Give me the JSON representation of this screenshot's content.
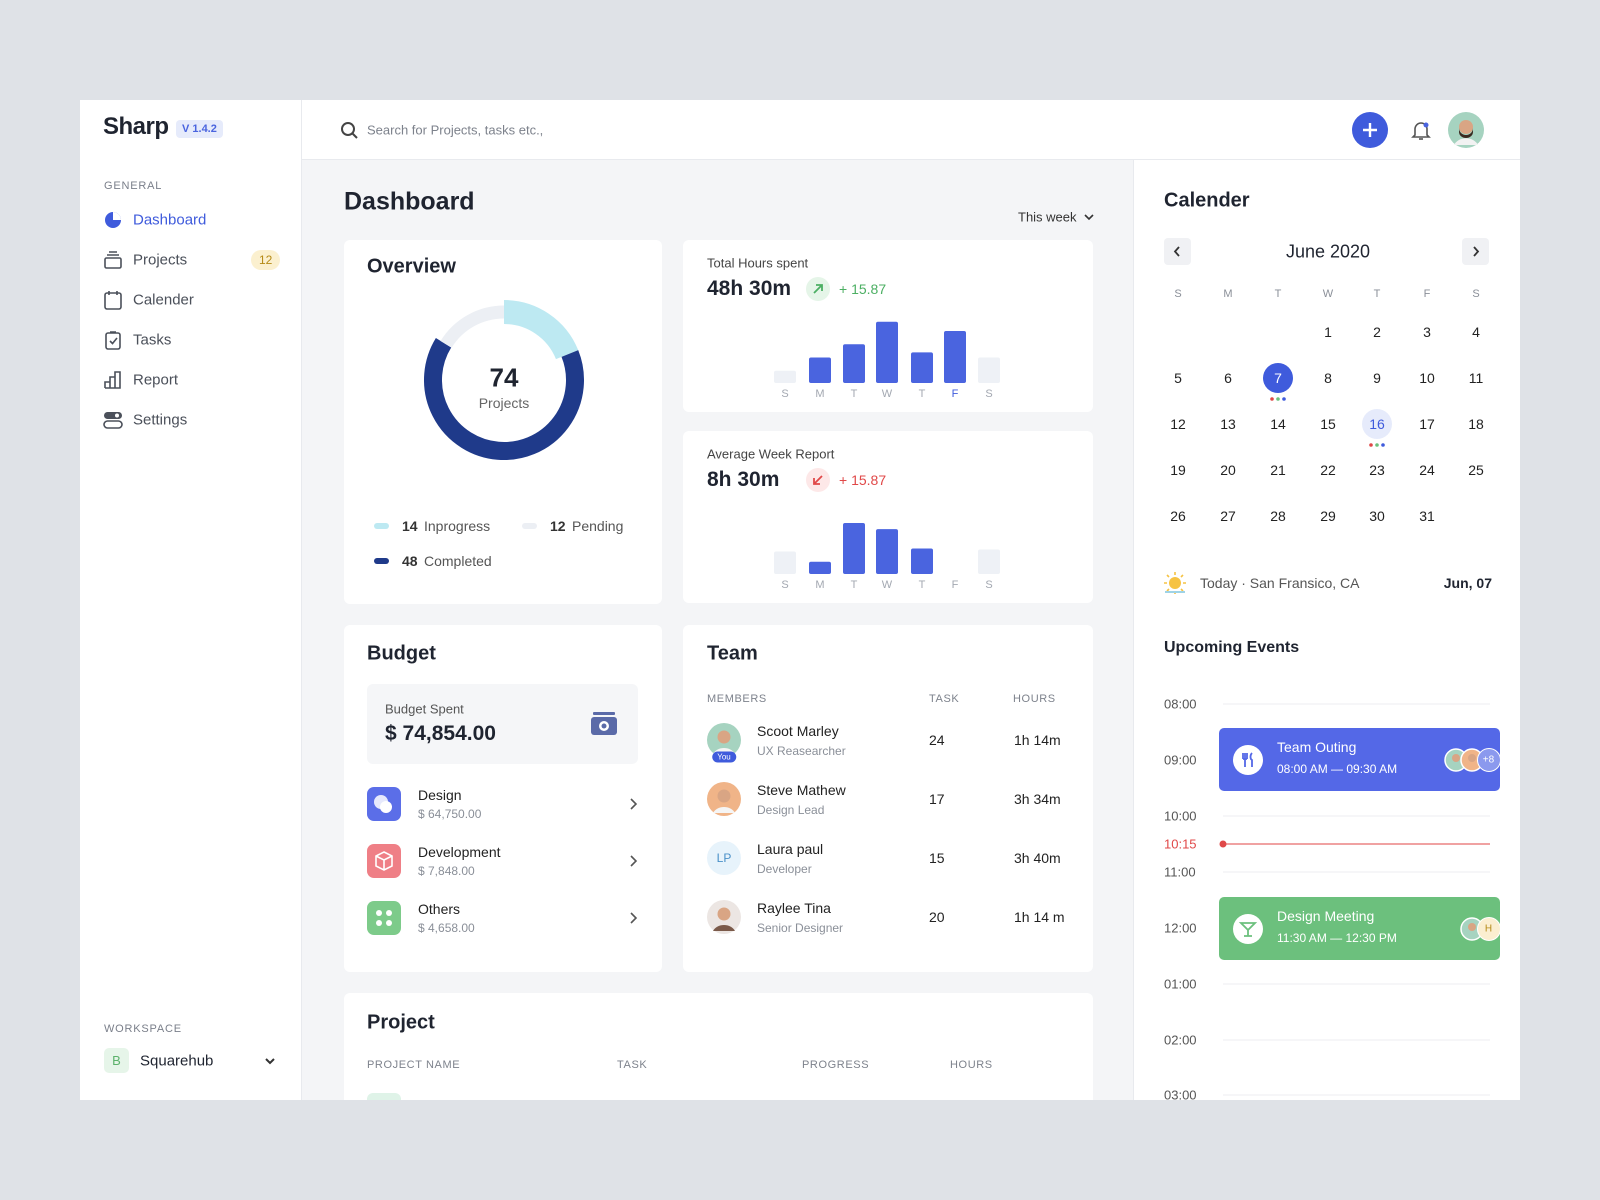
{
  "sidebar": {
    "logo": "Sharp",
    "version": "V 1.4.2",
    "section": "GENERAL",
    "active_index": 0,
    "nav": [
      {
        "label": "Dashboard"
      },
      {
        "label": "Projects",
        "badge": 12
      },
      {
        "label": "Calender"
      },
      {
        "label": "Tasks"
      },
      {
        "label": "Report"
      },
      {
        "label": "Settings"
      }
    ],
    "workspace_label": "WORKSPACE",
    "workspace": {
      "initial": "B",
      "name": "Squarehub"
    }
  },
  "topbar": {
    "search_placeholder": "Search for Projects, tasks etc.,"
  },
  "main": {
    "title": "Dashboard",
    "filter": "This week"
  },
  "overview": {
    "title": "Overview",
    "type": "donut",
    "total": 74,
    "total_label": "Projects",
    "series": [
      {
        "name": "Inprogress",
        "value": 14,
        "color": "#bde9f2"
      },
      {
        "name": "Completed",
        "value": 48,
        "color": "#1f3a8a"
      },
      {
        "name": "Pending",
        "value": 12,
        "color": "#eceff4"
      }
    ]
  },
  "hours": {
    "type": "bar",
    "label": "Total Hours spent",
    "value": "48h 30m",
    "trend": "+ 15.87",
    "trend_direction": "up",
    "categories": [
      "S",
      "M",
      "T",
      "W",
      "T",
      "F",
      "S"
    ],
    "values": [
      12,
      25,
      38,
      60,
      30,
      51,
      25
    ],
    "colors": [
      "#eef1f6",
      "#4a64df",
      "#4a64df",
      "#4a64df",
      "#4a64df",
      "#4a64df",
      "#eef1f6"
    ],
    "selected": 5
  },
  "week_report": {
    "type": "bar",
    "label": "Average Week Report",
    "value": "8h 30m",
    "trend": "+ 15.87",
    "trend_direction": "down",
    "categories": [
      "S",
      "M",
      "T",
      "W",
      "T",
      "F",
      "S"
    ],
    "values": [
      22,
      12,
      50,
      44,
      25,
      0,
      24
    ],
    "colors": [
      "#eef1f6",
      "#4a64df",
      "#4a64df",
      "#4a64df",
      "#4a64df",
      "#4a64df",
      "#eef1f6"
    ]
  },
  "budget": {
    "title": "Budget",
    "spent_label": "Budget Spent",
    "spent": "$ 74,854.00",
    "items": [
      {
        "name": "Design",
        "amount": "$ 64,750.00",
        "color": "#5b6ee8"
      },
      {
        "name": "Development",
        "amount": "$ 7,848.00",
        "color": "#ef7f86"
      },
      {
        "name": "Others",
        "amount": "$ 4,658.00",
        "color": "#7dcb8a"
      }
    ]
  },
  "team": {
    "title": "Team",
    "columns": [
      "MEMBERS",
      "TASK",
      "HOURS"
    ],
    "members": [
      {
        "name": "Scoot Marley",
        "role": "UX Reasearcher",
        "tasks": 24,
        "hours": "1h 14m",
        "badge": "You"
      },
      {
        "name": "Steve Mathew",
        "role": "Design Lead",
        "tasks": 17,
        "hours": "3h 34m"
      },
      {
        "name": "Laura paul",
        "role": "Developer",
        "tasks": 15,
        "hours": "3h 40m",
        "initials": "LP"
      },
      {
        "name": "Raylee Tina",
        "role": "Senior Designer",
        "tasks": 20,
        "hours": "1h 14 m"
      }
    ]
  },
  "project": {
    "title": "Project",
    "columns": [
      "PROJECT NAME",
      "TASK",
      "PROGRESS",
      "HOURS"
    ]
  },
  "calendar": {
    "title": "Calender",
    "month": "June 2020",
    "weekdays": [
      "S",
      "M",
      "T",
      "W",
      "T",
      "F",
      "S"
    ],
    "weeks": [
      [
        null,
        null,
        null,
        1,
        2,
        3,
        4
      ],
      [
        5,
        6,
        7,
        8,
        9,
        10,
        11
      ],
      [
        12,
        13,
        14,
        15,
        16,
        17,
        18
      ],
      [
        19,
        20,
        21,
        22,
        23,
        24,
        25
      ],
      [
        26,
        27,
        28,
        29,
        30,
        31,
        null
      ]
    ],
    "selected": 7,
    "highlighted": 16
  },
  "weather": {
    "location": "Today · San Fransico, CA",
    "date": "Jun, 07"
  },
  "events": {
    "title": "Upcoming Events",
    "times": [
      "08:00",
      "09:00",
      "10:00",
      "11:00",
      "12:00",
      "01:00",
      "02:00",
      "03:00"
    ],
    "now": "10:15",
    "items": [
      {
        "title": "Team Outing",
        "time": "08:00 AM — 09:30 AM",
        "color": "#5468e7",
        "extra": "+8"
      },
      {
        "title": "Design Meeting",
        "time": "11:30 AM — 12:30 PM",
        "color": "#6cc07d",
        "initial": "H"
      }
    ]
  }
}
